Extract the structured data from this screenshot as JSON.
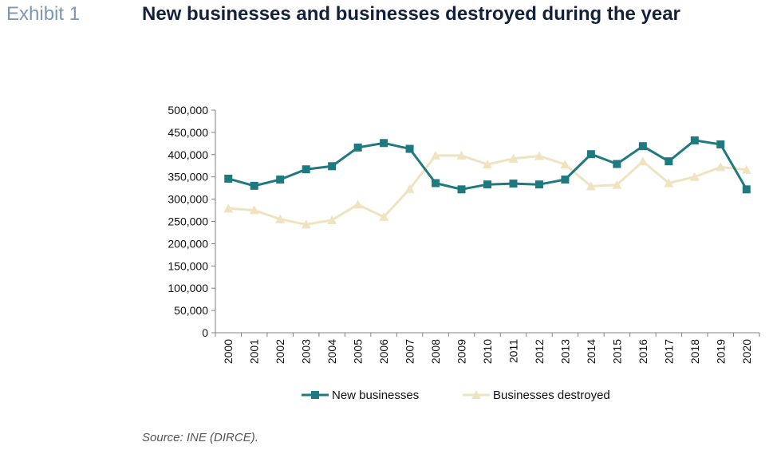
{
  "header": {
    "exhibit": "Exhibit 1",
    "title": "New businesses and businesses destroyed during the year"
  },
  "footer": {
    "source": "Source: INE (DIRCE)."
  },
  "chart_data": {
    "type": "line",
    "title": "New businesses and businesses destroyed during the year",
    "x": [
      "2000",
      "2001",
      "2002",
      "2003",
      "2004",
      "2005",
      "2006",
      "2007",
      "2008",
      "2009",
      "2010",
      "2011",
      "2012",
      "2013",
      "2014",
      "2015",
      "2016",
      "2017",
      "2018",
      "2019",
      "2020"
    ],
    "ylim": [
      0,
      500000
    ],
    "yticks": [
      0,
      50000,
      100000,
      150000,
      200000,
      250000,
      300000,
      350000,
      400000,
      450000,
      500000
    ],
    "ytick_labels": [
      "0",
      "50,000",
      "100,000",
      "150,000",
      "200,000",
      "250,000",
      "300,000",
      "350,000",
      "400,000",
      "450,000",
      "500,000"
    ],
    "grid": false,
    "legend": "bottom",
    "series": [
      {
        "name": "New businesses",
        "color": "#1f7a80",
        "marker": "square",
        "values": [
          346000,
          330000,
          344000,
          367000,
          374000,
          416000,
          426000,
          413000,
          336000,
          322000,
          333000,
          335000,
          333000,
          344000,
          401000,
          379000,
          419000,
          385000,
          432000,
          423000,
          322000
        ]
      },
      {
        "name": "Businesses destroyed",
        "color": "#efe3c0",
        "marker": "triangle",
        "values": [
          279000,
          275000,
          255000,
          243000,
          253000,
          288000,
          260000,
          323000,
          398000,
          398000,
          378000,
          391000,
          397000,
          378000,
          329000,
          332000,
          385000,
          336000,
          350000,
          372000,
          366000
        ]
      }
    ]
  }
}
